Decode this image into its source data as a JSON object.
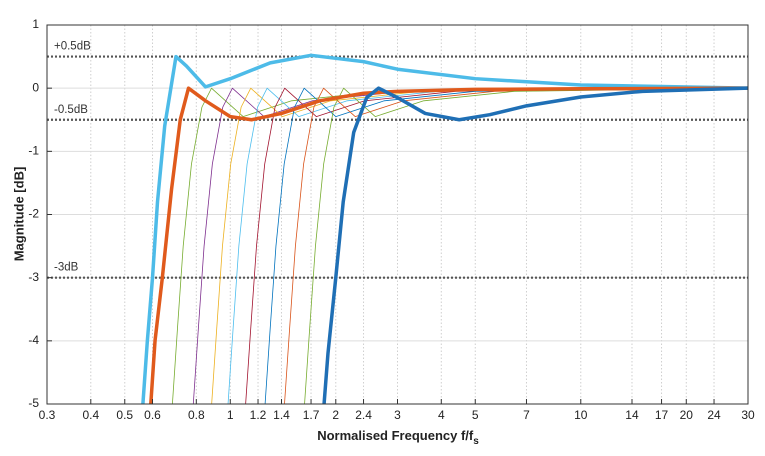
{
  "chart_data": {
    "type": "line",
    "xlabel": "Normalised Frequency f/f",
    "xlabel_sub": "s",
    "ylabel": "Magnitude [dB]",
    "xscale": "log",
    "grid": true,
    "xlim": [
      0.3,
      30
    ],
    "ylim": [
      -5,
      1
    ],
    "xticks": [
      0.3,
      0.4,
      0.5,
      0.6,
      0.8,
      1,
      1.2,
      1.4,
      1.7,
      2,
      2.4,
      3,
      4,
      5,
      7,
      10,
      14,
      17,
      20,
      24,
      30
    ],
    "yticks": [
      -5,
      -4,
      -3,
      -2,
      -1,
      0,
      1
    ],
    "ref_lines": [
      {
        "value": 0.5,
        "label": "+0.5dB"
      },
      {
        "value": -0.5,
        "label": "-0.5dB"
      },
      {
        "value": -3,
        "label": "-3dB"
      }
    ],
    "ref_color": "#555555",
    "series": [
      {
        "color": "#77ac30",
        "width": 0.8,
        "x": [
          0.68,
          0.707,
          0.734,
          0.775,
          0.83,
          0.884,
          1.088,
          1.496,
          2.72,
          30
        ],
        "values": [
          -5.2,
          -3.8,
          -2.5,
          -1.2,
          -0.3,
          0,
          -0.45,
          -0.2,
          -0.05,
          0
        ]
      },
      {
        "color": "#7e2f8e",
        "width": 0.8,
        "x": [
          0.78,
          0.811,
          0.842,
          0.889,
          0.952,
          1.014,
          1.248,
          1.716,
          3.12,
          30
        ],
        "values": [
          -5.2,
          -3.8,
          -2.5,
          -1.2,
          -0.3,
          0,
          -0.45,
          -0.2,
          -0.05,
          0
        ]
      },
      {
        "color": "#edb120",
        "width": 0.8,
        "x": [
          0.88,
          0.915,
          0.95,
          1.003,
          1.074,
          1.144,
          1.408,
          1.936,
          3.52,
          30
        ],
        "values": [
          -5.2,
          -3.8,
          -2.5,
          -1.2,
          -0.3,
          0,
          -0.45,
          -0.2,
          -0.05,
          0
        ]
      },
      {
        "color": "#4dbeee",
        "width": 0.8,
        "x": [
          0.98,
          1.019,
          1.058,
          1.117,
          1.196,
          1.274,
          1.568,
          2.156,
          3.92,
          30
        ],
        "values": [
          -5.2,
          -3.8,
          -2.5,
          -1.2,
          -0.3,
          0,
          -0.45,
          -0.2,
          -0.05,
          0
        ]
      },
      {
        "color": "#a2142f",
        "width": 0.8,
        "x": [
          1.1,
          1.144,
          1.188,
          1.254,
          1.342,
          1.43,
          1.76,
          2.42,
          4.4,
          30
        ],
        "values": [
          -5.2,
          -3.8,
          -2.5,
          -1.2,
          -0.3,
          0,
          -0.45,
          -0.2,
          -0.05,
          0
        ]
      },
      {
        "color": "#0072bd",
        "width": 0.8,
        "x": [
          1.25,
          1.3,
          1.35,
          1.425,
          1.525,
          1.625,
          2,
          2.75,
          5,
          30
        ],
        "values": [
          -5.2,
          -3.8,
          -2.5,
          -1.2,
          -0.3,
          0,
          -0.45,
          -0.2,
          -0.05,
          0
        ]
      },
      {
        "color": "#d95319",
        "width": 0.8,
        "x": [
          1.42,
          1.477,
          1.534,
          1.619,
          1.732,
          1.846,
          2.272,
          3.124,
          5.68,
          30
        ],
        "values": [
          -5.2,
          -3.8,
          -2.5,
          -1.2,
          -0.3,
          0,
          -0.45,
          -0.2,
          -0.05,
          0
        ]
      },
      {
        "color": "#77ac30",
        "width": 0.8,
        "x": [
          1.62,
          1.685,
          1.75,
          1.847,
          1.976,
          2.106,
          2.592,
          3.564,
          6.48,
          30
        ],
        "values": [
          -5.2,
          -3.8,
          -2.5,
          -1.2,
          -0.3,
          0,
          -0.45,
          -0.2,
          -0.05,
          0
        ]
      },
      {
        "color": "#4dbbe8",
        "width": 3.5,
        "x": [
          0.56,
          0.58,
          0.6,
          0.62,
          0.65,
          0.7,
          0.75,
          0.85,
          1,
          1.3,
          1.7,
          2.4,
          3,
          5,
          10,
          30
        ],
        "values": [
          -5.2,
          -4,
          -3,
          -1.8,
          -0.6,
          0.5,
          0.35,
          0.02,
          0.15,
          0.4,
          0.52,
          0.42,
          0.3,
          0.15,
          0.05,
          0
        ]
      },
      {
        "color": "#e05a1c",
        "width": 3.5,
        "x": [
          0.59,
          0.61,
          0.64,
          0.68,
          0.72,
          0.76,
          0.85,
          1,
          1.15,
          1.4,
          1.8,
          2.4,
          3,
          5,
          10,
          30
        ],
        "values": [
          -5.2,
          -4,
          -3,
          -1.6,
          -0.5,
          0,
          -0.2,
          -0.45,
          -0.5,
          -0.4,
          -0.2,
          -0.08,
          -0.05,
          -0.02,
          -0.01,
          0
        ]
      },
      {
        "color": "#1f6fb5",
        "width": 3.5,
        "x": [
          1.84,
          1.9,
          2,
          2.1,
          2.25,
          2.45,
          2.65,
          3,
          3.6,
          4.5,
          5.5,
          7,
          10,
          15,
          30
        ],
        "values": [
          -5.2,
          -4.2,
          -3,
          -1.8,
          -0.7,
          -0.15,
          0,
          -0.15,
          -0.4,
          -0.5,
          -0.42,
          -0.28,
          -0.14,
          -0.05,
          0
        ]
      }
    ]
  }
}
